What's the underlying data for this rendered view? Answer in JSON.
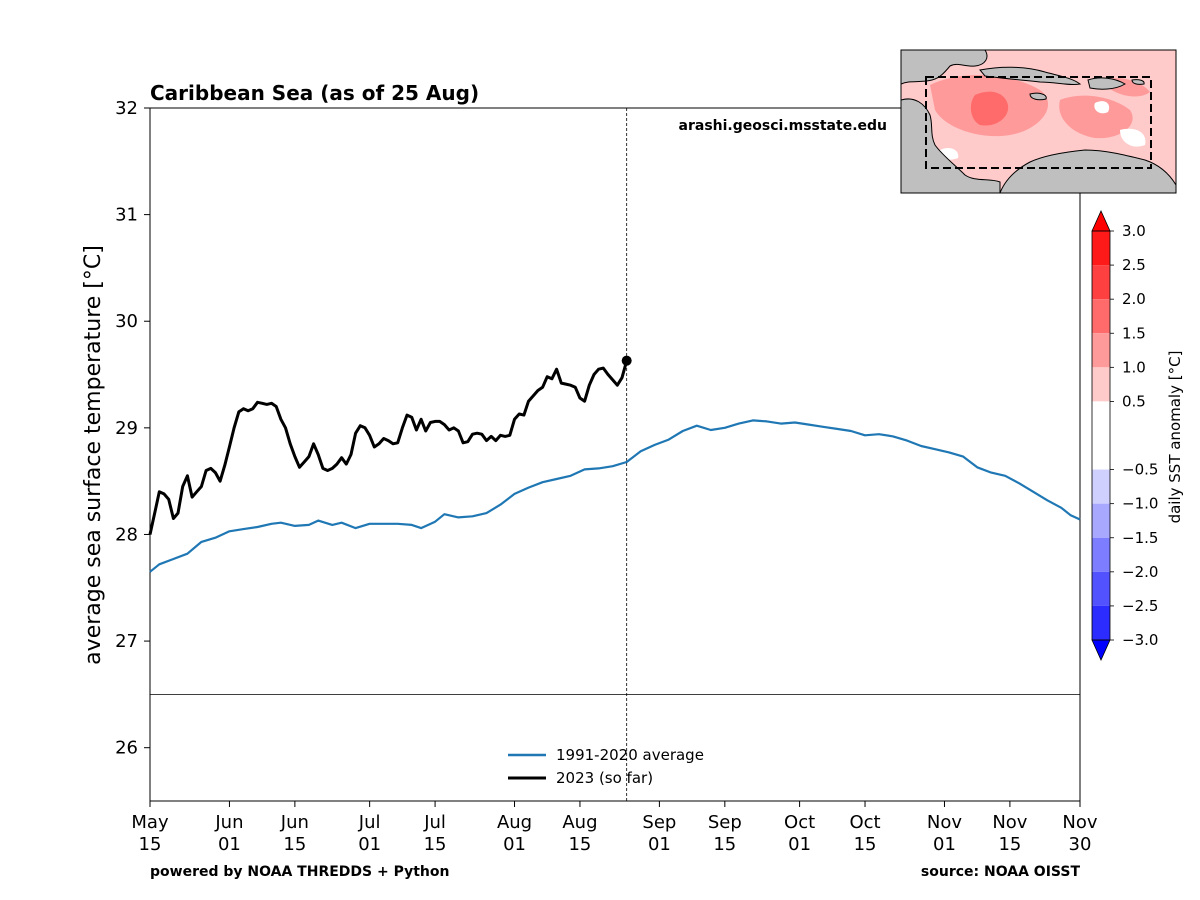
{
  "chart_data": {
    "type": "line",
    "title": "Caribbean Sea (as of 25 Aug)",
    "ylabel": "average sea surface temperature [°C]",
    "xlabel": "",
    "ylim": [
      25.5,
      32
    ],
    "yticks": [
      26,
      27,
      28,
      29,
      30,
      31,
      32
    ],
    "xlim": [
      "2023-05-15",
      "2023-11-30"
    ],
    "xticks": [
      {
        "date": "2023-05-15",
        "line1": "May",
        "line2": "15"
      },
      {
        "date": "2023-06-01",
        "line1": "Jun",
        "line2": "01"
      },
      {
        "date": "2023-06-15",
        "line1": "Jun",
        "line2": "15"
      },
      {
        "date": "2023-07-01",
        "line1": "Jul",
        "line2": "01"
      },
      {
        "date": "2023-07-15",
        "line1": "Jul",
        "line2": "15"
      },
      {
        "date": "2023-08-01",
        "line1": "Aug",
        "line2": "01"
      },
      {
        "date": "2023-08-15",
        "line1": "Aug",
        "line2": "15"
      },
      {
        "date": "2023-09-01",
        "line1": "Sep",
        "line2": "01"
      },
      {
        "date": "2023-09-15",
        "line1": "Sep",
        "line2": "15"
      },
      {
        "date": "2023-10-01",
        "line1": "Oct",
        "line2": "01"
      },
      {
        "date": "2023-10-15",
        "line1": "Oct",
        "line2": "15"
      },
      {
        "date": "2023-11-01",
        "line1": "Nov",
        "line2": "01"
      },
      {
        "date": "2023-11-15",
        "line1": "Nov",
        "line2": "15"
      },
      {
        "date": "2023-11-30",
        "line1": "Nov",
        "line2": "30"
      }
    ],
    "current_date": "2023-08-25",
    "reference_hline": 26.5,
    "legend": {
      "position": "lower center"
    },
    "grid": false,
    "series": [
      {
        "name": "1991-2020 average",
        "color": "#1f77b4",
        "points": [
          [
            "2023-05-15",
            27.65
          ],
          [
            "2023-05-17",
            27.72
          ],
          [
            "2023-05-20",
            27.77
          ],
          [
            "2023-05-23",
            27.82
          ],
          [
            "2023-05-26",
            27.93
          ],
          [
            "2023-05-29",
            27.97
          ],
          [
            "2023-06-01",
            28.03
          ],
          [
            "2023-06-04",
            28.05
          ],
          [
            "2023-06-07",
            28.07
          ],
          [
            "2023-06-10",
            28.1
          ],
          [
            "2023-06-12",
            28.11
          ],
          [
            "2023-06-15",
            28.08
          ],
          [
            "2023-06-18",
            28.09
          ],
          [
            "2023-06-20",
            28.13
          ],
          [
            "2023-06-23",
            28.09
          ],
          [
            "2023-06-25",
            28.11
          ],
          [
            "2023-06-28",
            28.06
          ],
          [
            "2023-07-01",
            28.1
          ],
          [
            "2023-07-04",
            28.1
          ],
          [
            "2023-07-07",
            28.1
          ],
          [
            "2023-07-10",
            28.09
          ],
          [
            "2023-07-12",
            28.06
          ],
          [
            "2023-07-15",
            28.12
          ],
          [
            "2023-07-17",
            28.19
          ],
          [
            "2023-07-20",
            28.16
          ],
          [
            "2023-07-23",
            28.17
          ],
          [
            "2023-07-26",
            28.2
          ],
          [
            "2023-07-29",
            28.28
          ],
          [
            "2023-08-01",
            28.38
          ],
          [
            "2023-08-04",
            28.44
          ],
          [
            "2023-08-07",
            28.49
          ],
          [
            "2023-08-10",
            28.52
          ],
          [
            "2023-08-13",
            28.55
          ],
          [
            "2023-08-16",
            28.61
          ],
          [
            "2023-08-19",
            28.62
          ],
          [
            "2023-08-22",
            28.64
          ],
          [
            "2023-08-25",
            28.68
          ],
          [
            "2023-08-28",
            28.78
          ],
          [
            "2023-08-31",
            28.84
          ],
          [
            "2023-09-03",
            28.89
          ],
          [
            "2023-09-06",
            28.97
          ],
          [
            "2023-09-09",
            29.02
          ],
          [
            "2023-09-12",
            28.98
          ],
          [
            "2023-09-15",
            29.0
          ],
          [
            "2023-09-18",
            29.04
          ],
          [
            "2023-09-21",
            29.07
          ],
          [
            "2023-09-24",
            29.06
          ],
          [
            "2023-09-27",
            29.04
          ],
          [
            "2023-09-30",
            29.05
          ],
          [
            "2023-10-03",
            29.03
          ],
          [
            "2023-10-06",
            29.01
          ],
          [
            "2023-10-09",
            28.99
          ],
          [
            "2023-10-12",
            28.97
          ],
          [
            "2023-10-15",
            28.93
          ],
          [
            "2023-10-18",
            28.94
          ],
          [
            "2023-10-21",
            28.92
          ],
          [
            "2023-10-24",
            28.88
          ],
          [
            "2023-10-27",
            28.83
          ],
          [
            "2023-10-30",
            28.8
          ],
          [
            "2023-11-02",
            28.77
          ],
          [
            "2023-11-05",
            28.73
          ],
          [
            "2023-11-08",
            28.63
          ],
          [
            "2023-11-11",
            28.58
          ],
          [
            "2023-11-14",
            28.55
          ],
          [
            "2023-11-17",
            28.48
          ],
          [
            "2023-11-20",
            28.4
          ],
          [
            "2023-11-23",
            28.32
          ],
          [
            "2023-11-26",
            28.25
          ],
          [
            "2023-11-28",
            28.18
          ],
          [
            "2023-11-30",
            28.14
          ]
        ]
      },
      {
        "name": "2023 (so far)",
        "color": "#000000",
        "points": [
          [
            "2023-05-15",
            28.0
          ],
          [
            "2023-05-16",
            28.2
          ],
          [
            "2023-05-17",
            28.4
          ],
          [
            "2023-05-18",
            28.38
          ],
          [
            "2023-05-19",
            28.33
          ],
          [
            "2023-05-20",
            28.15
          ],
          [
            "2023-05-21",
            28.2
          ],
          [
            "2023-05-22",
            28.45
          ],
          [
            "2023-05-23",
            28.55
          ],
          [
            "2023-05-24",
            28.35
          ],
          [
            "2023-05-25",
            28.4
          ],
          [
            "2023-05-26",
            28.45
          ],
          [
            "2023-05-27",
            28.6
          ],
          [
            "2023-05-28",
            28.62
          ],
          [
            "2023-05-29",
            28.58
          ],
          [
            "2023-05-30",
            28.5
          ],
          [
            "2023-05-31",
            28.65
          ],
          [
            "2023-06-01",
            28.82
          ],
          [
            "2023-06-02",
            29.0
          ],
          [
            "2023-06-03",
            29.15
          ],
          [
            "2023-06-04",
            29.18
          ],
          [
            "2023-06-05",
            29.16
          ],
          [
            "2023-06-06",
            29.18
          ],
          [
            "2023-06-07",
            29.24
          ],
          [
            "2023-06-08",
            29.23
          ],
          [
            "2023-06-09",
            29.22
          ],
          [
            "2023-06-10",
            29.23
          ],
          [
            "2023-06-11",
            29.2
          ],
          [
            "2023-06-12",
            29.08
          ],
          [
            "2023-06-13",
            29.0
          ],
          [
            "2023-06-14",
            28.85
          ],
          [
            "2023-06-15",
            28.73
          ],
          [
            "2023-06-16",
            28.63
          ],
          [
            "2023-06-17",
            28.68
          ],
          [
            "2023-06-18",
            28.73
          ],
          [
            "2023-06-19",
            28.85
          ],
          [
            "2023-06-20",
            28.75
          ],
          [
            "2023-06-21",
            28.62
          ],
          [
            "2023-06-22",
            28.6
          ],
          [
            "2023-06-23",
            28.62
          ],
          [
            "2023-06-24",
            28.66
          ],
          [
            "2023-06-25",
            28.72
          ],
          [
            "2023-06-26",
            28.66
          ],
          [
            "2023-06-27",
            28.75
          ],
          [
            "2023-06-28",
            28.95
          ],
          [
            "2023-06-29",
            29.02
          ],
          [
            "2023-06-30",
            29.0
          ],
          [
            "2023-07-01",
            28.93
          ],
          [
            "2023-07-02",
            28.82
          ],
          [
            "2023-07-03",
            28.85
          ],
          [
            "2023-07-04",
            28.9
          ],
          [
            "2023-07-05",
            28.88
          ],
          [
            "2023-07-06",
            28.85
          ],
          [
            "2023-07-07",
            28.86
          ],
          [
            "2023-07-08",
            29.0
          ],
          [
            "2023-07-09",
            29.12
          ],
          [
            "2023-07-10",
            29.1
          ],
          [
            "2023-07-11",
            28.98
          ],
          [
            "2023-07-12",
            29.08
          ],
          [
            "2023-07-13",
            28.97
          ],
          [
            "2023-07-14",
            29.05
          ],
          [
            "2023-07-15",
            29.06
          ],
          [
            "2023-07-16",
            29.06
          ],
          [
            "2023-07-17",
            29.03
          ],
          [
            "2023-07-18",
            28.98
          ],
          [
            "2023-07-19",
            29.0
          ],
          [
            "2023-07-20",
            28.97
          ],
          [
            "2023-07-21",
            28.86
          ],
          [
            "2023-07-22",
            28.87
          ],
          [
            "2023-07-23",
            28.94
          ],
          [
            "2023-07-24",
            28.95
          ],
          [
            "2023-07-25",
            28.94
          ],
          [
            "2023-07-26",
            28.88
          ],
          [
            "2023-07-27",
            28.92
          ],
          [
            "2023-07-28",
            28.88
          ],
          [
            "2023-07-29",
            28.93
          ],
          [
            "2023-07-30",
            28.92
          ],
          [
            "2023-07-31",
            28.93
          ],
          [
            "2023-08-01",
            29.08
          ],
          [
            "2023-08-02",
            29.13
          ],
          [
            "2023-08-03",
            29.12
          ],
          [
            "2023-08-04",
            29.25
          ],
          [
            "2023-08-05",
            29.3
          ],
          [
            "2023-08-06",
            29.35
          ],
          [
            "2023-08-07",
            29.38
          ],
          [
            "2023-08-08",
            29.48
          ],
          [
            "2023-08-09",
            29.46
          ],
          [
            "2023-08-10",
            29.55
          ],
          [
            "2023-08-11",
            29.42
          ],
          [
            "2023-08-12",
            29.41
          ],
          [
            "2023-08-13",
            29.4
          ],
          [
            "2023-08-14",
            29.38
          ],
          [
            "2023-08-15",
            29.28
          ],
          [
            "2023-08-16",
            29.25
          ],
          [
            "2023-08-17",
            29.4
          ],
          [
            "2023-08-18",
            29.5
          ],
          [
            "2023-08-19",
            29.55
          ],
          [
            "2023-08-20",
            29.56
          ],
          [
            "2023-08-21",
            29.5
          ],
          [
            "2023-08-22",
            29.45
          ],
          [
            "2023-08-23",
            29.4
          ],
          [
            "2023-08-24",
            29.47
          ],
          [
            "2023-08-25",
            29.63
          ]
        ]
      }
    ],
    "colorbar": {
      "label": "daily SST anomaly [°C]",
      "ticks": [
        "3.0",
        "2.5",
        "2.0",
        "1.5",
        "1.0",
        "0.5",
        "−0.5",
        "−1.0",
        "−1.5",
        "−2.0",
        "−2.5",
        "−3.0"
      ],
      "levels": [
        -3.0,
        -2.5,
        -2.0,
        -1.5,
        -1.0,
        -0.5,
        0.5,
        1.0,
        1.5,
        2.0,
        2.5,
        3.0
      ],
      "colors_top_to_bottom": [
        "#ff1a1a",
        "#ff4040",
        "#ff6b6b",
        "#ff9a9a",
        "#ffcaca",
        "#ffffff",
        "#d0d0ff",
        "#a8a8ff",
        "#7d7dff",
        "#5252ff",
        "#2c2cff"
      ],
      "extend_max_color": "#ff0000",
      "extend_min_color": "#0000ff"
    }
  },
  "annotations": {
    "website": "arashi.geosci.msstate.edu",
    "powered_by": "powered by NOAA THREDDS + Python",
    "source": "source: NOAA OISST"
  },
  "inset_map": {
    "land_color": "#bfbfbf",
    "anomaly_colors": [
      "#ffcaca",
      "#ff9a9a",
      "#ff6b6b"
    ],
    "box_style": "dashed"
  }
}
